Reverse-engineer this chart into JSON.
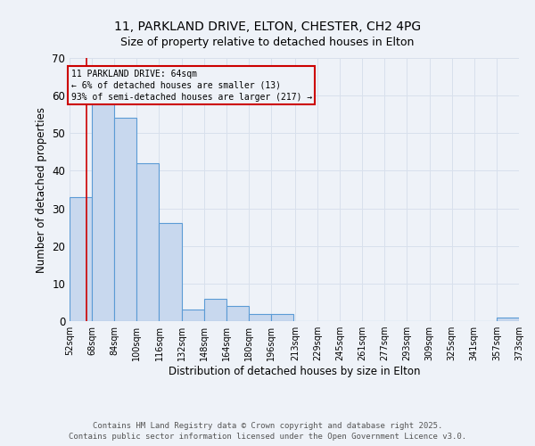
{
  "title1": "11, PARKLAND DRIVE, ELTON, CHESTER, CH2 4PG",
  "title2": "Size of property relative to detached houses in Elton",
  "xlabel": "Distribution of detached houses by size in Elton",
  "ylabel": "Number of detached properties",
  "bins": [
    52,
    68,
    84,
    100,
    116,
    132,
    148,
    164,
    180,
    196,
    213,
    229,
    245,
    261,
    277,
    293,
    309,
    325,
    341,
    357,
    373
  ],
  "counts": [
    33,
    58,
    54,
    42,
    26,
    3,
    6,
    4,
    2,
    2,
    0,
    0,
    0,
    0,
    0,
    0,
    0,
    0,
    0,
    1
  ],
  "bar_color": "#c8d8ee",
  "bar_edge_color": "#5b9bd5",
  "property_line_x": 64,
  "property_line_color": "#cc0000",
  "annotation_text": "11 PARKLAND DRIVE: 64sqm\n← 6% of detached houses are smaller (13)\n93% of semi-detached houses are larger (217) →",
  "annotation_box_color": "#cc0000",
  "ylim": [
    0,
    70
  ],
  "footer1": "Contains HM Land Registry data © Crown copyright and database right 2025.",
  "footer2": "Contains public sector information licensed under the Open Government Licence v3.0.",
  "background_color": "#eef2f8",
  "grid_color": "#d8e0ec",
  "title1_fontsize": 10,
  "title2_fontsize": 9,
  "tick_label_fontsize": 7,
  "axis_label_fontsize": 8.5,
  "footer_fontsize": 6.5
}
